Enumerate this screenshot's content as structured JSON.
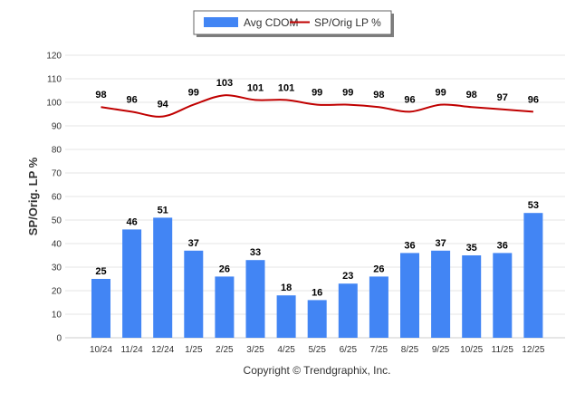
{
  "chart_data": {
    "type": "bar",
    "title": "",
    "xlabel": "",
    "ylabel": "SP/Orig. LP %",
    "ylim": [
      0,
      120
    ],
    "yticks": [
      "0",
      "10",
      "20",
      "30",
      "40",
      "50",
      "60",
      "70",
      "80",
      "90",
      "100",
      "110",
      "120"
    ],
    "grid": true,
    "legend_position": "top-center",
    "categories": [
      "10/24",
      "11/24",
      "12/24",
      "1/25",
      "2/25",
      "3/25",
      "4/25",
      "5/25",
      "6/25",
      "7/25",
      "8/25",
      "9/25",
      "10/25",
      "11/25",
      "12/25"
    ],
    "series": [
      {
        "name": "Avg CDOM",
        "type": "bar",
        "color": "#4285f4",
        "values": [
          25,
          46,
          51,
          37,
          26,
          33,
          18,
          16,
          23,
          26,
          36,
          37,
          35,
          36,
          53
        ],
        "labels": [
          "25",
          "46",
          "51",
          "37",
          "26",
          "33",
          "18",
          "16",
          "23",
          "26",
          "36",
          "37",
          "35",
          "36",
          "53"
        ]
      },
      {
        "name": "SP/Orig LP %",
        "type": "line",
        "color": "#c00000",
        "values": [
          98,
          96,
          94,
          99,
          103,
          101,
          101,
          99,
          99,
          98,
          96,
          99,
          98,
          97,
          96
        ],
        "labels": [
          "98",
          "96",
          "94",
          "99",
          "103",
          "101",
          "101",
          "99",
          "99",
          "98",
          "96",
          "99",
          "98",
          "97",
          "96"
        ]
      }
    ]
  },
  "footer": "Copyright © Trendgraphix, Inc."
}
